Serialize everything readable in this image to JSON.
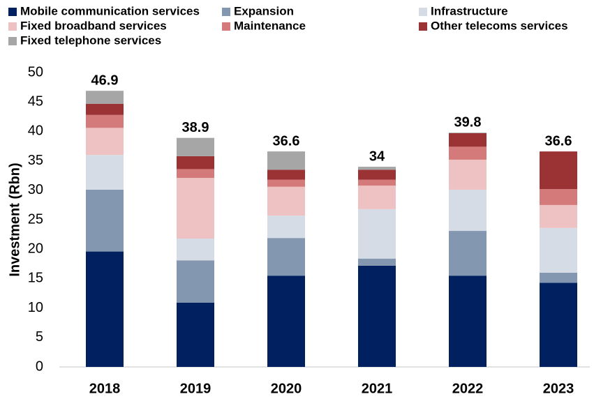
{
  "chart_data": {
    "type": "stacked_bar",
    "y_axis_label": "Investment (Rbn)",
    "categories": [
      "2018",
      "2019",
      "2020",
      "2021",
      "2022",
      "2023"
    ],
    "series": [
      {
        "name": "Mobile communication services",
        "color": "#002060",
        "values": [
          19.6,
          10.9,
          15.5,
          17.2,
          15.5,
          14.3
        ]
      },
      {
        "name": "Expansion",
        "color": "#8497b0",
        "values": [
          10.5,
          7.2,
          6.4,
          1.2,
          7.6,
          1.7
        ]
      },
      {
        "name": "Infrastructure",
        "color": "#d6dce5",
        "values": [
          5.9,
          3.7,
          3.8,
          8.4,
          7.0,
          7.6
        ]
      },
      {
        "name": "Fixed broadband services",
        "color": "#eec1c2",
        "values": [
          4.6,
          10.3,
          4.9,
          4.0,
          5.1,
          3.9
        ]
      },
      {
        "name": "Maintenance",
        "color": "#d47a7a",
        "values": [
          2.2,
          1.5,
          1.2,
          1.0,
          2.2,
          2.7
        ]
      },
      {
        "name": "Other telecoms services",
        "color": "#9b3234",
        "values": [
          1.9,
          2.2,
          1.7,
          1.7,
          2.3,
          6.4
        ]
      },
      {
        "name": "Fixed telephone services",
        "color": "#a6a6a6",
        "values": [
          2.2,
          3.1,
          3.1,
          0.5,
          0.1,
          0
        ]
      }
    ],
    "totals": [
      46.9,
      38.9,
      36.6,
      34,
      39.8,
      36.6
    ],
    "ylim": [
      0,
      50
    ],
    "yticks": [
      0,
      5,
      10,
      15,
      20,
      25,
      30,
      35,
      40,
      45,
      50
    ],
    "grid": false
  }
}
